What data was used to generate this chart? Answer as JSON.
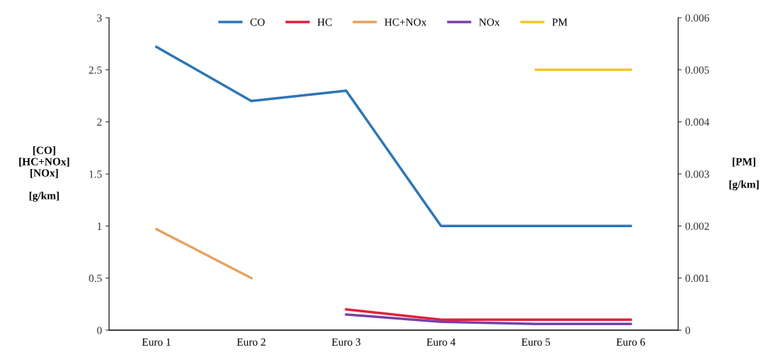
{
  "chart_data": {
    "type": "line",
    "categories": [
      "Euro 1",
      "Euro 2",
      "Euro 3",
      "Euro 4",
      "Euro 5",
      "Euro 6"
    ],
    "series": [
      {
        "name": "CO",
        "color": "#2e75b6",
        "values": [
          2.72,
          2.2,
          2.3,
          1.0,
          1.0,
          1.0
        ]
      },
      {
        "name": "HC",
        "color": "#e0203a",
        "values": [
          null,
          null,
          0.2,
          0.1,
          0.1,
          0.1
        ]
      },
      {
        "name": "HC+NOx",
        "color": "#e8a060",
        "values": [
          0.97,
          0.5,
          null,
          null,
          null,
          null
        ]
      },
      {
        "name": "NOx",
        "color": "#7a3fa8",
        "values": [
          null,
          null,
          0.15,
          0.08,
          0.06,
          0.06
        ]
      },
      {
        "name": "PM",
        "color": "#f0c828",
        "values": [
          null,
          null,
          null,
          null,
          0.005,
          0.005
        ],
        "axis": "y2"
      }
    ],
    "ylabel": "[CO]\n[HC+NOx]\n[NOx]\n\n[g/km]",
    "y2label": "[PM]\n\n[g/km]",
    "ylim": [
      0,
      3
    ],
    "yticks": [
      0,
      {
        "value": 0.5,
        "label": "0.5"
      },
      1,
      {
        "value": 1.5,
        "label": "1.5"
      },
      2,
      {
        "value": 2.5,
        "label": "2.5"
      },
      3
    ],
    "y2lim": [
      0,
      0.006
    ],
    "y2ticks": [
      0,
      0.001,
      0.002,
      0.003,
      0.004,
      0.005,
      0.006
    ],
    "legend": "top",
    "grid": false,
    "marker": "none",
    "line_style": "solid"
  }
}
